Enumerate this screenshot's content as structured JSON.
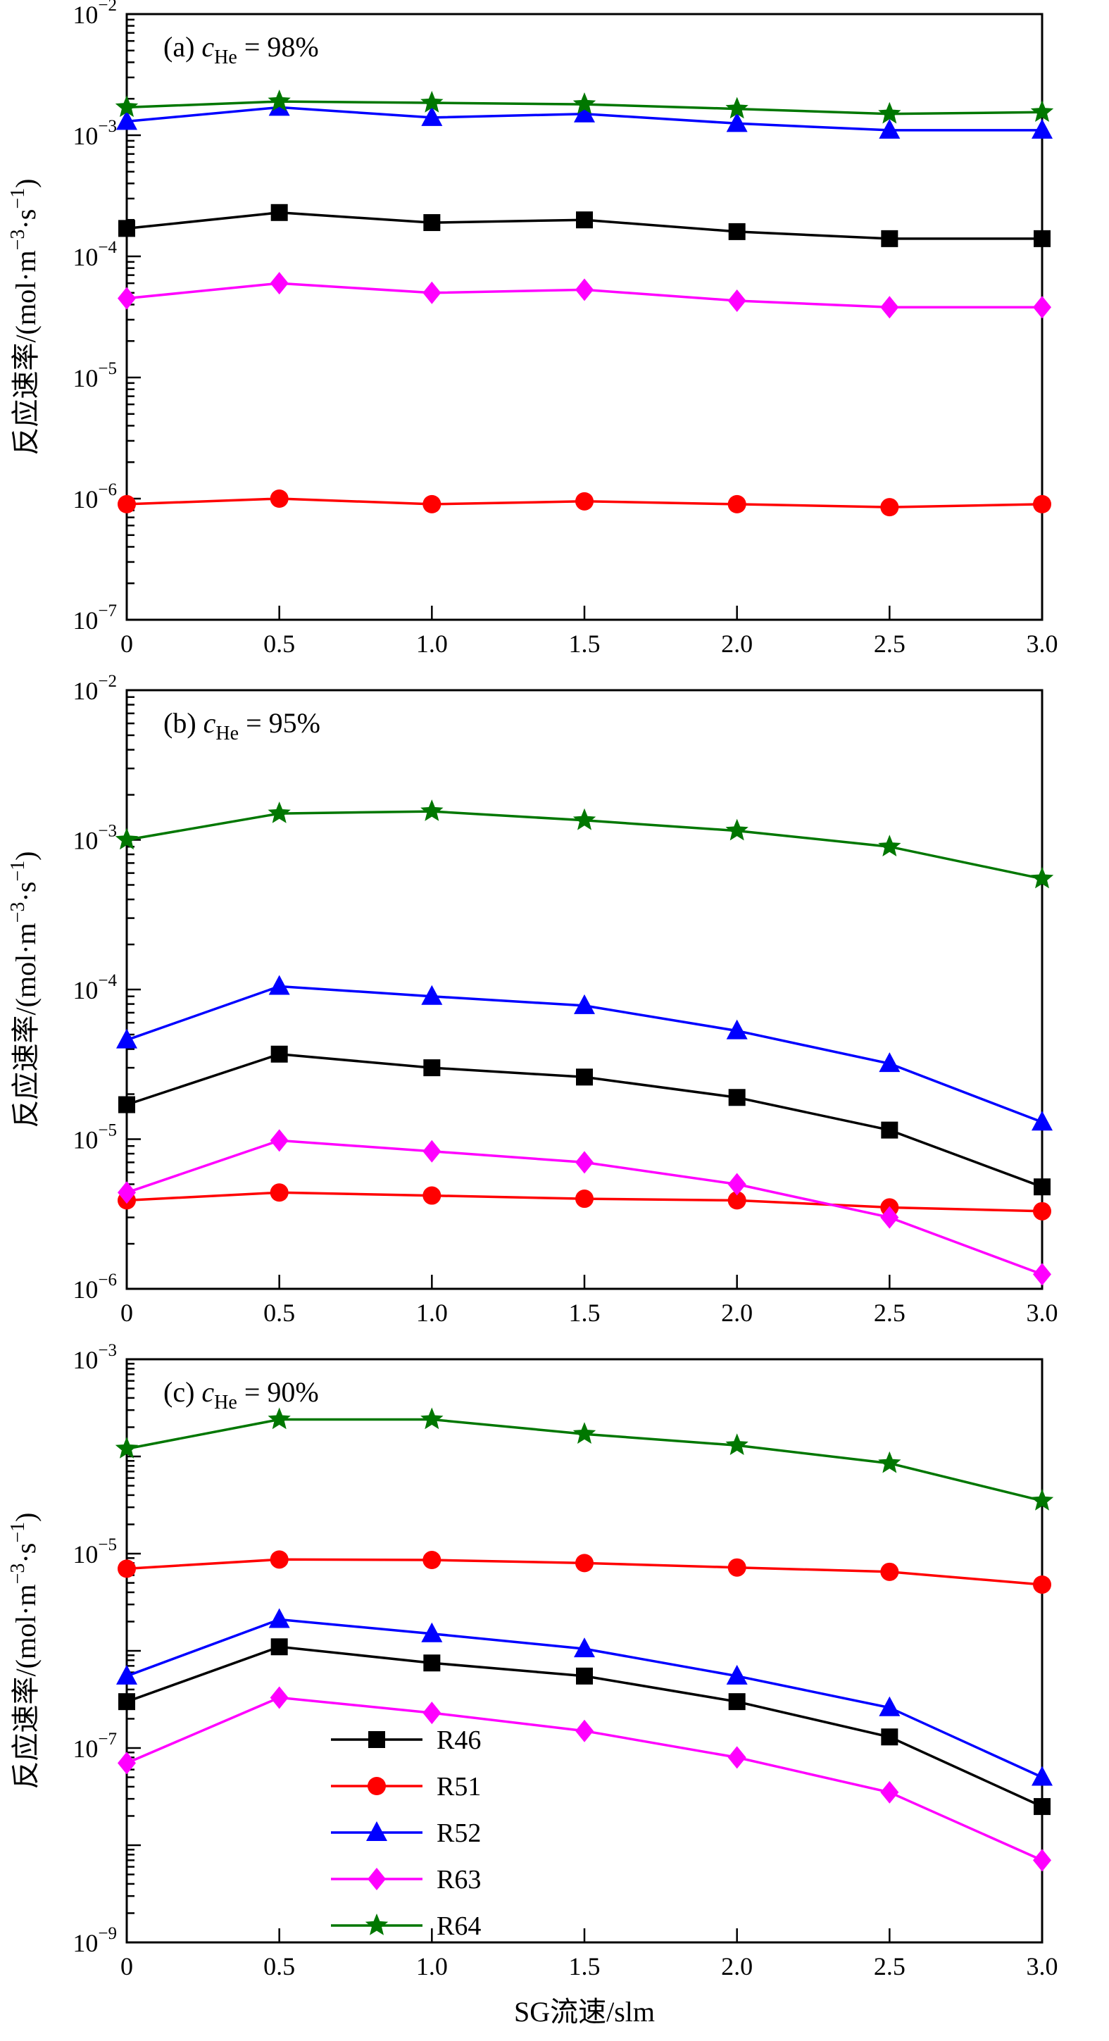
{
  "figure": {
    "background": "#ffffff",
    "xlabel": "SG流速/slm",
    "ylabel": "反应速率/(mol·m⁻³·s⁻¹)",
    "ylabel_parts": [
      {
        "t": "反应速率/(mol·m"
      },
      {
        "t": "−3",
        "sup": true
      },
      {
        "t": "·s"
      },
      {
        "t": "−1",
        "sup": true
      },
      {
        "t": ")"
      }
    ],
    "xlim": [
      0,
      3
    ],
    "x_ticks": [
      0,
      0.5,
      1,
      1.5,
      2,
      2.5,
      3
    ],
    "x_tick_labels": [
      "0",
      "0.5",
      "1.0",
      "1.5",
      "2.0",
      "2.5",
      "3.0"
    ],
    "series_meta": [
      {
        "name": "R46",
        "color": "#000000",
        "marker": "square"
      },
      {
        "name": "R51",
        "color": "#ff0000",
        "marker": "circle"
      },
      {
        "name": "R52",
        "color": "#0000ff",
        "marker": "triangle"
      },
      {
        "name": "R63",
        "color": "#ff00ff",
        "marker": "diamond"
      },
      {
        "name": "R64",
        "color": "#007700",
        "marker": "star"
      }
    ],
    "legend": {
      "entries": [
        "R46",
        "R51",
        "R52",
        "R63",
        "R64"
      ],
      "location": "lower-left-of-panel-c"
    }
  },
  "chart_data": [
    {
      "id": "a",
      "type": "line",
      "title": "(a) cHe = 98%",
      "annotation": {
        "prefix": "(a) ",
        "var": "c",
        "sub": "He",
        "rest": " = 98%"
      },
      "ylog": true,
      "y_top_exp": -2,
      "y_bottom_exp": -7,
      "ytick_label_step": 1,
      "ytick_labels": [
        "10⁻²",
        "10⁻³",
        "10⁻⁴",
        "10⁻⁵",
        "10⁻⁶",
        "10⁻⁷"
      ],
      "x": [
        0,
        0.5,
        1,
        1.5,
        2,
        2.5,
        3
      ],
      "series": [
        {
          "name": "R46",
          "values": [
            0.00017,
            0.00023,
            0.00019,
            0.0002,
            0.00016,
            0.00014,
            0.00014
          ]
        },
        {
          "name": "R51",
          "values": [
            9e-07,
            1e-06,
            9e-07,
            9.5e-07,
            9e-07,
            8.5e-07,
            9e-07
          ]
        },
        {
          "name": "R52",
          "values": [
            0.0013,
            0.0017,
            0.0014,
            0.0015,
            0.00125,
            0.0011,
            0.0011
          ]
        },
        {
          "name": "R63",
          "values": [
            4.5e-05,
            6e-05,
            5e-05,
            5.3e-05,
            4.3e-05,
            3.8e-05,
            3.8e-05
          ]
        },
        {
          "name": "R64",
          "values": [
            0.0017,
            0.0019,
            0.00185,
            0.0018,
            0.00165,
            0.0015,
            0.00155
          ]
        }
      ],
      "show_legend": false,
      "show_xlabel": false
    },
    {
      "id": "b",
      "type": "line",
      "title": "(b) cHe = 95%",
      "annotation": {
        "prefix": "(b) ",
        "var": "c",
        "sub": "He",
        "rest": " = 95%"
      },
      "ylog": true,
      "y_top_exp": -2,
      "y_bottom_exp": -6,
      "ytick_label_step": 1,
      "ytick_labels": [
        "10⁻²",
        "10⁻³",
        "10⁻⁴",
        "10⁻⁵",
        "10⁻⁶"
      ],
      "x": [
        0,
        0.5,
        1,
        1.5,
        2,
        2.5,
        3
      ],
      "series": [
        {
          "name": "R46",
          "values": [
            1.7e-05,
            3.7e-05,
            3e-05,
            2.6e-05,
            1.9e-05,
            1.15e-05,
            4.8e-06
          ]
        },
        {
          "name": "R51",
          "values": [
            3.9e-06,
            4.4e-06,
            4.2e-06,
            4e-06,
            3.9e-06,
            3.5e-06,
            3.3e-06
          ]
        },
        {
          "name": "R52",
          "values": [
            4.6e-05,
            0.000105,
            9e-05,
            7.8e-05,
            5.3e-05,
            3.2e-05,
            1.3e-05
          ]
        },
        {
          "name": "R63",
          "values": [
            4.4e-06,
            9.8e-06,
            8.3e-06,
            7e-06,
            5e-06,
            3e-06,
            1.25e-06
          ]
        },
        {
          "name": "R64",
          "values": [
            0.001,
            0.0015,
            0.00155,
            0.00135,
            0.00115,
            0.0009,
            0.00055
          ]
        }
      ],
      "show_legend": false,
      "show_xlabel": false
    },
    {
      "id": "c",
      "type": "line",
      "title": "(c) cHe = 90%",
      "annotation": {
        "prefix": "(c) ",
        "var": "c",
        "sub": "He",
        "rest": " = 90%"
      },
      "ylog": true,
      "y_top_exp": -3,
      "y_bottom_exp": -9,
      "ytick_label_step": 2,
      "ytick_labels": [
        "10⁻³",
        "10⁻⁵",
        "10⁻⁷",
        "10⁻⁹"
      ],
      "x": [
        0,
        0.5,
        1,
        1.5,
        2,
        2.5,
        3
      ],
      "series": [
        {
          "name": "R46",
          "values": [
            3e-07,
            1.1e-06,
            7.5e-07,
            5.5e-07,
            3e-07,
            1.3e-07,
            2.5e-08
          ]
        },
        {
          "name": "R51",
          "values": [
            7e-06,
            8.7e-06,
            8.6e-06,
            8e-06,
            7.2e-06,
            6.5e-06,
            4.8e-06
          ]
        },
        {
          "name": "R52",
          "values": [
            5.5e-07,
            2.1e-06,
            1.5e-06,
            1.05e-06,
            5.5e-07,
            2.6e-07,
            5e-08
          ]
        },
        {
          "name": "R63",
          "values": [
            7e-08,
            3.3e-07,
            2.3e-07,
            1.5e-07,
            8e-08,
            3.5e-08,
            7e-09
          ]
        },
        {
          "name": "R64",
          "values": [
            0.00012,
            0.00024,
            0.00024,
            0.00017,
            0.00013,
            8.5e-05,
            3.5e-05
          ]
        }
      ],
      "show_legend": true,
      "show_xlabel": true
    }
  ]
}
